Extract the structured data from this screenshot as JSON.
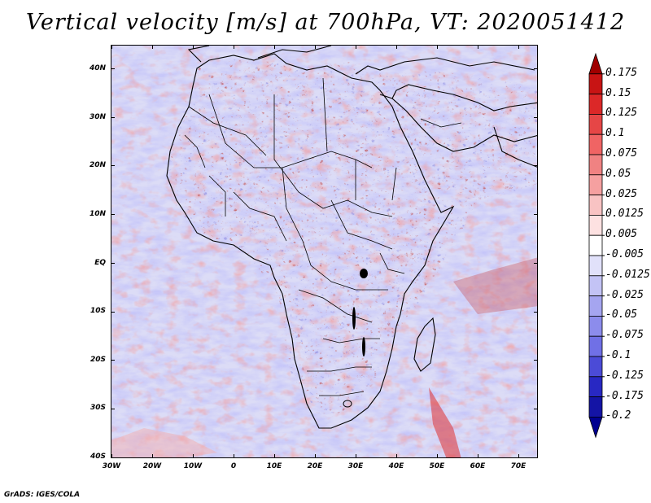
{
  "title": "Vertical velocity [m/s] at 700hPa, VT: 2020051412",
  "credit": "GrADS: IGES/COLA",
  "lat_labels": [
    "40N",
    "30N",
    "20N",
    "10N",
    "EQ",
    "10S",
    "20S",
    "30S",
    "40S"
  ],
  "lon_labels": [
    "30W",
    "20W",
    "10W",
    "0",
    "10E",
    "20E",
    "30E",
    "40E",
    "50E",
    "60E",
    "70E"
  ],
  "colorbar": {
    "levels": [
      "0.175",
      "0.15",
      "0.125",
      "0.1",
      "0.075",
      "0.05",
      "0.025",
      "0.0125",
      "0.005",
      "-0.005",
      "-0.0125",
      "-0.025",
      "-0.05",
      "-0.075",
      "-0.1",
      "-0.125",
      "-0.175",
      "-0.2"
    ],
    "colors": [
      "#a00000",
      "#c81414",
      "#dc2828",
      "#e64646",
      "#f06464",
      "#f08282",
      "#f5a0a0",
      "#f8c3c3",
      "#fde1e1",
      "#ffffff",
      "#e1e1fa",
      "#c3c3f5",
      "#a5a5f0",
      "#8c8cec",
      "#7070e6",
      "#4b4bd7",
      "#2828c3",
      "#1414a5",
      "#000090"
    ]
  },
  "chart_data": {
    "type": "heatmap",
    "title": "Vertical velocity [m/s] at 700hPa, VT: 2020051412",
    "variable": "Vertical velocity",
    "units": "m/s",
    "level": "700hPa",
    "valid_time": "2020051412",
    "lon_range": [
      -30,
      75
    ],
    "lat_range": [
      -40,
      45
    ],
    "x_ticks": [
      "30W",
      "20W",
      "10W",
      "0",
      "10E",
      "20E",
      "30E",
      "40E",
      "50E",
      "60E",
      "70E"
    ],
    "y_ticks": [
      "40N",
      "30N",
      "20N",
      "10N",
      "EQ",
      "10S",
      "20S",
      "30S",
      "40S"
    ]
  }
}
